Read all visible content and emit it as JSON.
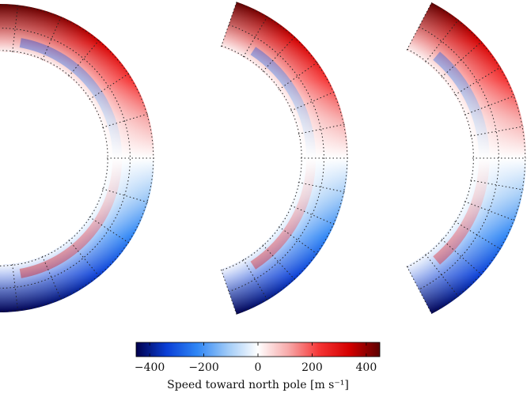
{
  "chart_data": {
    "type": "contour",
    "colorbar": {
      "label": "Speed toward north pole [m s⁻¹]",
      "lim": [
        -450,
        450
      ],
      "ticks": [
        {
          "value": -400,
          "label": "−400"
        },
        {
          "value": -200,
          "label": "−200"
        },
        0,
        200,
        400
      ],
      "colormap": [
        "#00004d",
        "#0a3fd6",
        "#2f86f5",
        "#9fcaf7",
        "#ffffff",
        "#f7a9a9",
        "#f53535",
        "#d40000",
        "#5c0000"
      ]
    }
  }
}
